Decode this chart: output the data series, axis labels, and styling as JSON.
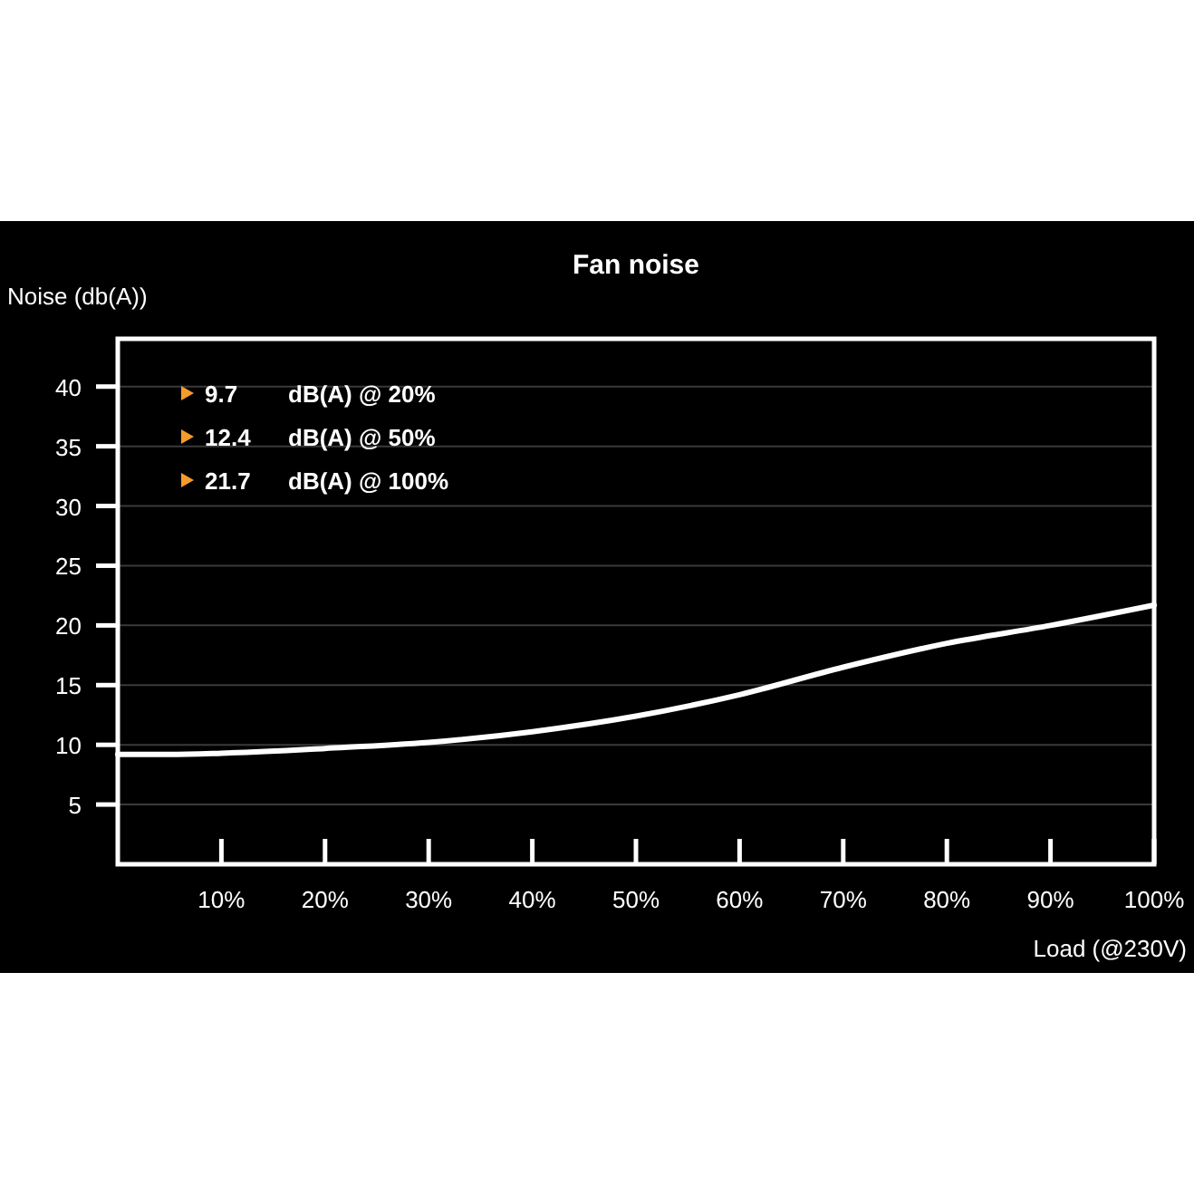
{
  "chart_data": {
    "type": "line",
    "title": "Fan noise",
    "xlabel": "Load (@230V)",
    "ylabel": "Noise (db(A))",
    "x": [
      0,
      5,
      10,
      20,
      30,
      40,
      50,
      60,
      70,
      80,
      90,
      100
    ],
    "series": [
      {
        "color": "#ffffff",
        "values": [
          9.2,
          9.2,
          9.3,
          9.7,
          10.2,
          11.1,
          12.4,
          14.2,
          16.5,
          18.5,
          20,
          21.7
        ]
      }
    ],
    "xlim": [
      0,
      100
    ],
    "xticks": [
      {
        "value": 10,
        "label": "10%"
      },
      {
        "value": 20,
        "label": "20%"
      },
      {
        "value": 30,
        "label": "30%"
      },
      {
        "value": 40,
        "label": "40%"
      },
      {
        "value": 50,
        "label": "50%"
      },
      {
        "value": 60,
        "label": "60%"
      },
      {
        "value": 70,
        "label": "70%"
      },
      {
        "value": 80,
        "label": "80%"
      },
      {
        "value": 90,
        "label": "90%"
      },
      {
        "value": 100,
        "label": "100%"
      }
    ],
    "ylim": [
      0,
      44
    ],
    "yticks": [
      5,
      10,
      15,
      20,
      25,
      30,
      35,
      40
    ],
    "grid": "y",
    "marker": "none",
    "line_style": "solid",
    "annotations": [
      "9.7   dB(A) @ 20%",
      "12.4   dB(A) @ 50%",
      "21.7   dB(A) @ 100%"
    ]
  }
}
